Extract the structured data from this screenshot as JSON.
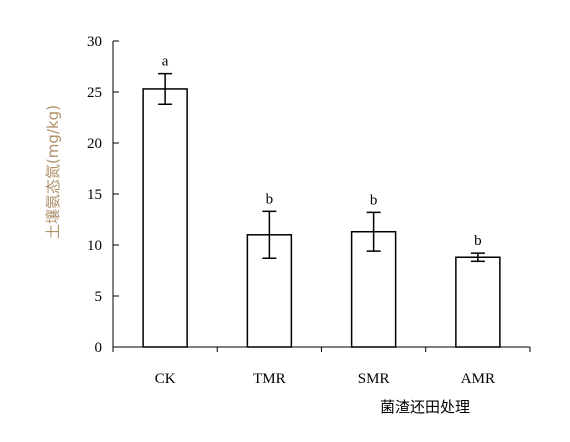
{
  "chart_data": {
    "type": "bar",
    "title": "",
    "xlabel": "菌渣还田处理",
    "ylabel": "土壤氨态氮(mg/kg)",
    "ylim": [
      0,
      30
    ],
    "yticks": [
      "0",
      "5",
      "10",
      "15",
      "20",
      "25",
      "30"
    ],
    "categories": [
      "CK",
      "TMR",
      "SMR",
      "AMR"
    ],
    "series": [
      {
        "values": [
          25.3,
          11.0,
          11.3,
          8.8
        ],
        "error": [
          1.5,
          2.3,
          1.9,
          0.4
        ],
        "significance": [
          "a",
          "b",
          "b",
          "b"
        ]
      }
    ],
    "grid": false,
    "legend": "none",
    "colors": {
      "bar_fill": "#ffffff",
      "bar_stroke": "#000000",
      "axis": "#000000",
      "ylabel_color": "#b0906a"
    }
  }
}
